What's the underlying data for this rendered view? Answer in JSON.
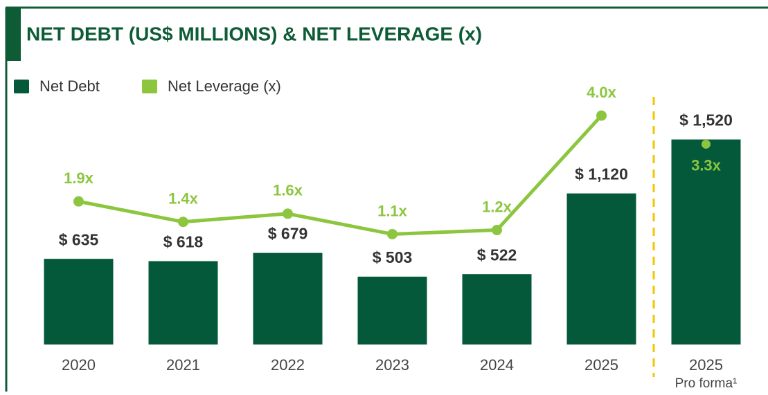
{
  "chart_data": {
    "type": "bar",
    "title": "NET DEBT (US$ MILLIONS) & NET LEVERAGE (x)",
    "categories": [
      "2020",
      "2021",
      "2022",
      "2023",
      "2024",
      "2025",
      "2025"
    ],
    "annotations": [
      "Pro forma¹"
    ],
    "series": [
      {
        "name": "Net Debt",
        "type": "bar",
        "color": "#03593a",
        "axis": "y",
        "values": [
          635,
          618,
          679,
          503,
          522,
          1120,
          1520
        ],
        "value_labels": [
          "$ 635",
          "$ 618",
          "$ 679",
          "$ 503",
          "$ 522",
          "$ 1,120",
          "$ 1,520"
        ]
      },
      {
        "name": "Net Leverage (x)",
        "type": "line",
        "color": "#8cc63f",
        "axis": "y2",
        "values": [
          1.9,
          1.4,
          1.6,
          1.1,
          1.2,
          4.0,
          3.3
        ],
        "value_labels": [
          "1.9x",
          "1.4x",
          "1.6x",
          "1.1x",
          "1.2x",
          "4.0x",
          "3.3x"
        ]
      }
    ],
    "ylim": [
      0,
      2000
    ],
    "y2lim": [
      -1.6,
      5
    ],
    "separator_color": "#f5c400"
  }
}
